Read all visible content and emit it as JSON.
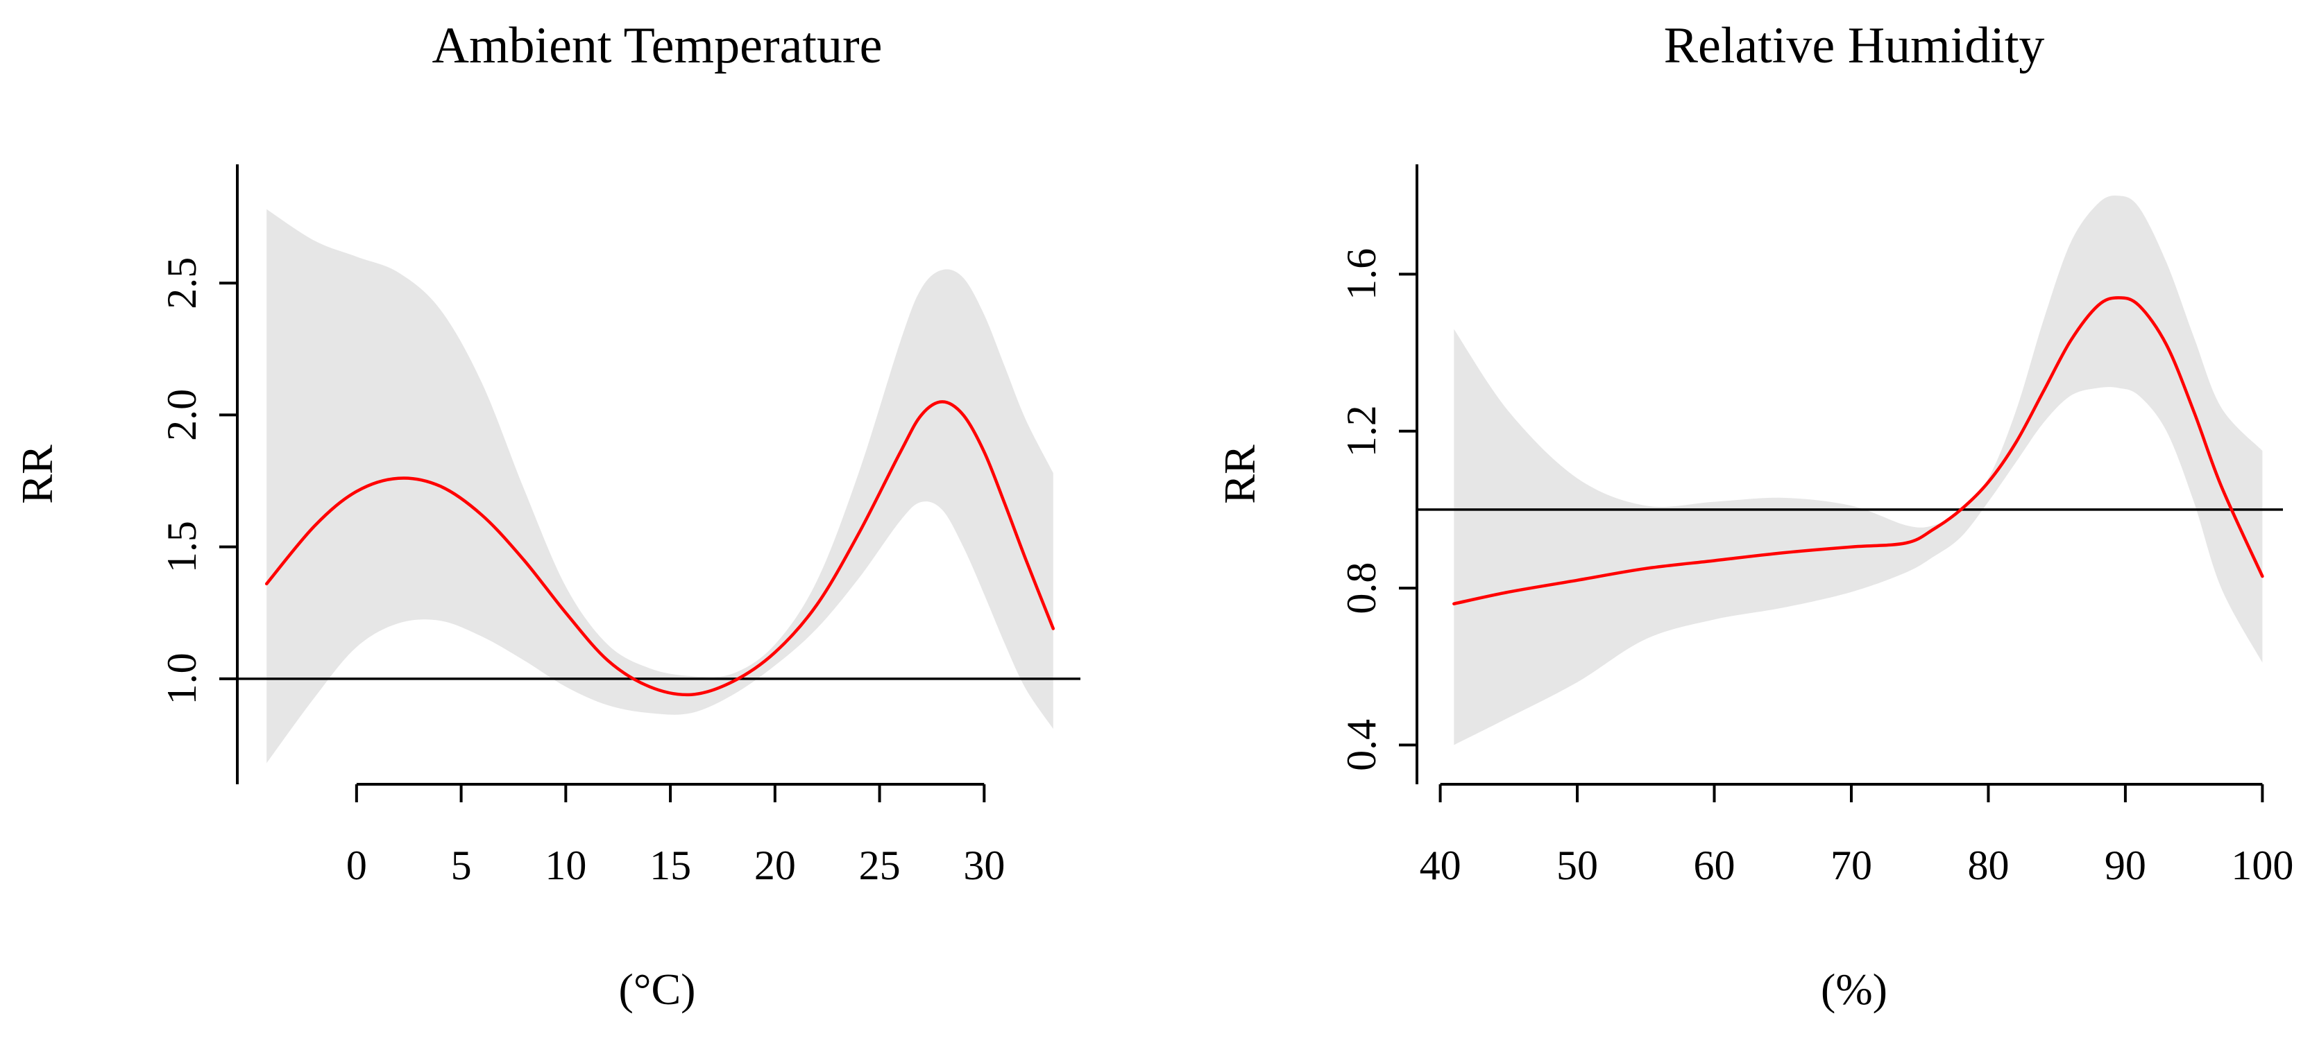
{
  "colors": {
    "curve": "#ff0000",
    "band": "#e6e6e6",
    "axis": "#000000",
    "reference": "#000000"
  },
  "chart_data": [
    {
      "type": "line",
      "title": "Ambient Temperature",
      "xlabel": "(°C)",
      "ylabel": "RR",
      "xlim": [
        -5.7,
        34.6
      ],
      "ylim": [
        0.6,
        2.95
      ],
      "x_ticks": [
        0,
        5,
        10,
        15,
        20,
        25,
        30
      ],
      "x_tick_labels": [
        "0",
        "5",
        "10",
        "15",
        "20",
        "25",
        "30"
      ],
      "y_ticks": [
        1.0,
        1.5,
        2.0,
        2.5
      ],
      "y_tick_labels": [
        "1.0",
        "1.5",
        "2.0",
        "2.5"
      ],
      "reference_line": 1.0,
      "series": [
        {
          "name": "RR",
          "x": [
            -4.3,
            -2,
            0,
            2,
            4,
            6,
            8,
            10,
            12,
            14,
            16,
            18,
            20,
            22,
            24,
            26,
            27,
            28,
            29,
            30,
            31,
            32,
            33.3
          ],
          "values": [
            1.36,
            1.58,
            1.71,
            1.76,
            1.73,
            1.62,
            1.45,
            1.25,
            1.07,
            0.97,
            0.94,
            0.99,
            1.1,
            1.28,
            1.55,
            1.86,
            2.0,
            2.05,
            2.0,
            1.86,
            1.66,
            1.45,
            1.19
          ]
        },
        {
          "name": "95% CI upper",
          "x": [
            -4.3,
            -2,
            0,
            2,
            4,
            6,
            8,
            10,
            12,
            14,
            16,
            18,
            20,
            22,
            24,
            26,
            27,
            28,
            29,
            30,
            31,
            32,
            33.3
          ],
          "values": [
            2.78,
            2.66,
            2.6,
            2.54,
            2.4,
            2.12,
            1.72,
            1.35,
            1.13,
            1.04,
            1.01,
            1.02,
            1.13,
            1.37,
            1.78,
            2.28,
            2.48,
            2.55,
            2.52,
            2.38,
            2.18,
            1.98,
            1.78
          ]
        },
        {
          "name": "95% CI lower",
          "x": [
            -4.3,
            -2,
            0,
            2,
            4,
            6,
            8,
            10,
            12,
            14,
            16,
            18,
            20,
            22,
            24,
            26,
            27,
            28,
            29,
            30,
            31,
            32,
            33.3
          ],
          "values": [
            0.68,
            0.93,
            1.12,
            1.21,
            1.22,
            1.16,
            1.07,
            0.97,
            0.9,
            0.87,
            0.87,
            0.94,
            1.05,
            1.19,
            1.38,
            1.6,
            1.67,
            1.64,
            1.5,
            1.32,
            1.13,
            0.96,
            0.81
          ]
        }
      ]
    },
    {
      "type": "line",
      "title": "Relative Humidity",
      "xlabel": "(%)",
      "ylabel": "RR",
      "xlim": [
        38.3,
        101.5
      ],
      "ylim": [
        0.3,
        1.88
      ],
      "x_ticks": [
        40,
        50,
        60,
        70,
        80,
        90,
        100
      ],
      "x_tick_labels": [
        "40",
        "50",
        "60",
        "70",
        "80",
        "90",
        "100"
      ],
      "y_ticks": [
        0.4,
        0.8,
        1.2,
        1.6
      ],
      "y_tick_labels": [
        "0.4",
        "0.8",
        "1.2",
        "1.6"
      ],
      "reference_line": 1.0,
      "series": [
        {
          "name": "RR",
          "x": [
            41,
            45,
            50,
            55,
            60,
            65,
            70,
            74,
            76,
            78,
            80,
            82,
            84,
            86,
            88,
            89.5,
            91,
            93,
            95,
            97,
            100
          ],
          "values": [
            0.76,
            0.79,
            0.82,
            0.85,
            0.87,
            0.89,
            0.905,
            0.915,
            0.95,
            1.0,
            1.07,
            1.17,
            1.3,
            1.43,
            1.52,
            1.54,
            1.52,
            1.42,
            1.25,
            1.06,
            0.83
          ]
        },
        {
          "name": "95% CI upper",
          "x": [
            41,
            45,
            50,
            55,
            60,
            65,
            70,
            74,
            76,
            78,
            80,
            82,
            84,
            86,
            88,
            89.5,
            91,
            93,
            95,
            97,
            100
          ],
          "values": [
            1.46,
            1.25,
            1.08,
            1.01,
            1.02,
            1.03,
            1.01,
            0.96,
            0.96,
            1.0,
            1.08,
            1.25,
            1.48,
            1.68,
            1.78,
            1.8,
            1.77,
            1.63,
            1.44,
            1.26,
            1.15
          ]
        },
        {
          "name": "95% CI lower",
          "x": [
            41,
            45,
            50,
            55,
            60,
            65,
            70,
            74,
            76,
            78,
            80,
            82,
            84,
            86,
            88,
            89.5,
            91,
            93,
            95,
            97,
            100
          ],
          "values": [
            0.4,
            0.47,
            0.56,
            0.67,
            0.72,
            0.75,
            0.79,
            0.84,
            0.88,
            0.93,
            1.02,
            1.12,
            1.22,
            1.29,
            1.31,
            1.31,
            1.29,
            1.2,
            1.02,
            0.8,
            0.61
          ]
        }
      ]
    }
  ]
}
